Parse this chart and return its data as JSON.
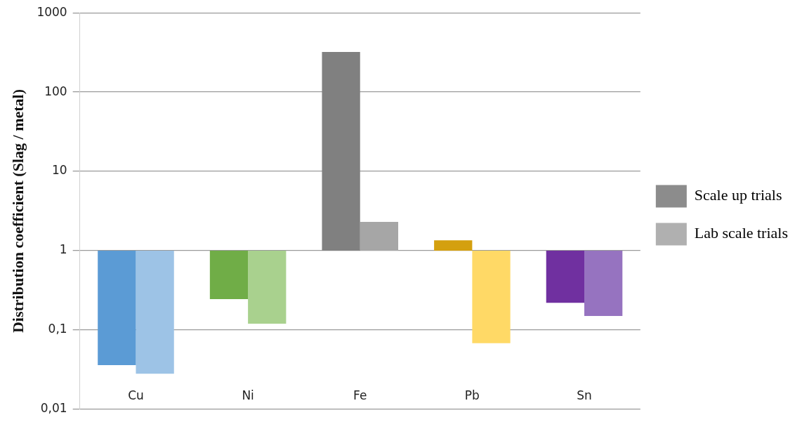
{
  "chart_data": {
    "type": "bar",
    "ylabel": "Distribution coefficient (Slag / metal)",
    "categories": [
      "Cu",
      "Ni",
      "Fe",
      "Pb",
      "Sn"
    ],
    "series": [
      {
        "name": "Scale up trials",
        "color": "#8c8c8c",
        "colors": [
          "#5b9bd5",
          "#70ad47",
          "#808080",
          "#d4a00f",
          "#7030a0"
        ],
        "base": [
          1,
          1,
          1,
          1,
          1
        ],
        "values": [
          -0.964,
          -0.755,
          319,
          0.35,
          -0.78
        ]
      },
      {
        "name": "Lab scale trials",
        "color": "#b0b0b0",
        "colors": [
          "#9dc3e6",
          "#a9d18e",
          "#a6a6a6",
          "#ffd966",
          "#9673c0"
        ],
        "base": [
          1,
          1,
          1,
          1,
          1
        ],
        "values": [
          -0.972,
          -0.88,
          1.3,
          -0.932,
          -0.85
        ]
      }
    ],
    "log": "y",
    "ylim": [
      0.01,
      1000
    ],
    "yticks": [
      {
        "value": 0.01,
        "label": "0,01"
      },
      {
        "value": 0.1,
        "label": "0,1"
      },
      1,
      10,
      100,
      1000
    ],
    "grid": "y",
    "legend": "right"
  }
}
